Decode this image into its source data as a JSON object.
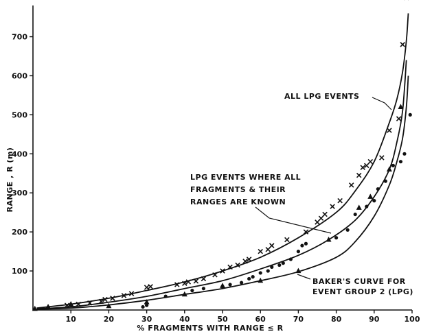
{
  "chart_data": {
    "type": "scatter",
    "title": "",
    "xlabel": "% FRAGMENTS WITH RANGE ≤ R",
    "ylabel": "RANGE , R (m)",
    "xlim": [
      0,
      100
    ],
    "ylim": [
      0,
      780
    ],
    "xticks": [
      "10",
      "20",
      "30",
      "40",
      "50",
      "60",
      "70",
      "80",
      "90",
      "100"
    ],
    "yticks": [
      "100",
      "200",
      "300",
      "400",
      "500",
      "600",
      "700"
    ],
    "grid": false,
    "annotations": [
      {
        "lines": [
          "ALL LPG EVENTS"
        ]
      },
      {
        "lines": [
          "LPG EVENTS WHERE ALL",
          "FRAGMENTS & THEIR",
          "RANGES ARE KNOWN"
        ]
      },
      {
        "lines": [
          "BAKER'S CURVE FOR",
          "EVENT GROUP 2 (LPG)"
        ]
      }
    ],
    "curves": [
      {
        "id": "all-lpg",
        "x": [
          1,
          10,
          20,
          30,
          40,
          50,
          60,
          70,
          80,
          85,
          90,
          94,
          96,
          97.5,
          98.5,
          99
        ],
        "y": [
          5,
          15,
          30,
          50,
          72,
          100,
          135,
          185,
          250,
          305,
          380,
          480,
          540,
          610,
          690,
          760
        ]
      },
      {
        "id": "known-ranges",
        "x": [
          1,
          10,
          20,
          30,
          40,
          50,
          60,
          70,
          78,
          85,
          90,
          94,
          96,
          97.5,
          98.5
        ],
        "y": [
          3,
          8,
          20,
          35,
          55,
          75,
          105,
          140,
          180,
          230,
          290,
          360,
          430,
          510,
          640
        ]
      },
      {
        "id": "baker",
        "x": [
          1,
          10,
          20,
          30,
          40,
          50,
          60,
          70,
          80,
          85,
          90,
          94,
          96,
          97.5,
          98.5,
          99
        ],
        "y": [
          2,
          5,
          13,
          25,
          40,
          55,
          75,
          98,
          135,
          175,
          240,
          320,
          380,
          440,
          520,
          600
        ]
      }
    ],
    "series": [
      {
        "marker": "x",
        "x": [
          9,
          12,
          15,
          18,
          19,
          21,
          24,
          26,
          30,
          31,
          38,
          40,
          41,
          43,
          45,
          48,
          50,
          52,
          54,
          56,
          57,
          60,
          62,
          63,
          67,
          72,
          75,
          76,
          77,
          79,
          81,
          84,
          86,
          87,
          88,
          89,
          92,
          94,
          96.5,
          97.5,
          98.5
        ],
        "y": [
          12,
          15,
          18,
          22,
          27,
          30,
          37,
          42,
          58,
          60,
          65,
          68,
          72,
          74,
          80,
          90,
          100,
          110,
          115,
          125,
          130,
          150,
          155,
          165,
          180,
          200,
          225,
          235,
          245,
          265,
          280,
          320,
          345,
          365,
          370,
          380,
          390,
          460,
          490,
          680,
          800
        ]
      },
      {
        "marker": "dot",
        "x": [
          29,
          30,
          35,
          42,
          45,
          50,
          52,
          55,
          57,
          58,
          60,
          62,
          63,
          65,
          66,
          68,
          70,
          71,
          72,
          80,
          83,
          85,
          88,
          90,
          91,
          93,
          95,
          97,
          98,
          99.5
        ],
        "y": [
          8,
          12,
          35,
          50,
          55,
          60,
          65,
          70,
          80,
          85,
          95,
          100,
          110,
          115,
          120,
          130,
          150,
          165,
          170,
          185,
          205,
          245,
          265,
          280,
          310,
          330,
          370,
          380,
          400,
          500
        ]
      },
      {
        "marker": "triangle",
        "x": [
          0.5,
          4,
          10,
          20,
          30,
          40,
          50,
          60,
          70,
          78,
          86,
          89,
          94,
          97
        ],
        "y": [
          3,
          8,
          15,
          10,
          20,
          40,
          62,
          75,
          100,
          180,
          262,
          290,
          360,
          520
        ]
      }
    ]
  }
}
